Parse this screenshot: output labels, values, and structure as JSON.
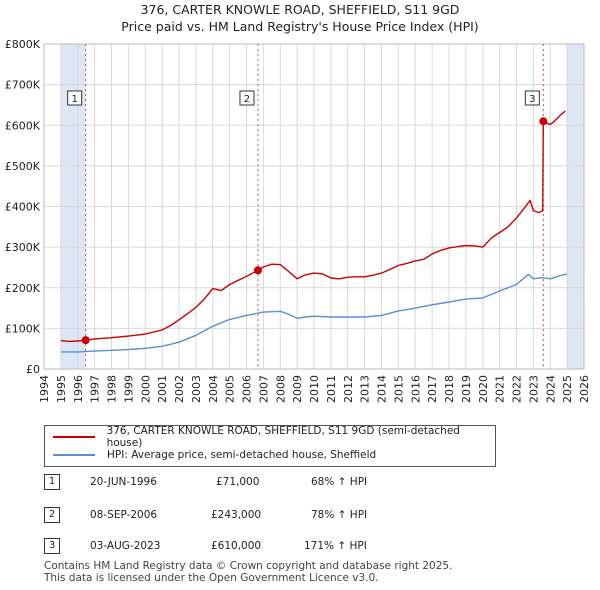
{
  "header": {
    "title_line1": "376, CARTER KNOWLE ROAD, SHEFFIELD, S11 9GD",
    "title_line2": "Price paid vs. HM Land Registry's House Price Index (HPI)"
  },
  "legend": {
    "property_label": "376, CARTER KNOWLE ROAD, SHEFFIELD, S11 9GD (semi-detached house)",
    "hpi_label": "HPI: Average price, semi-detached house, Sheffield"
  },
  "transactions": [
    {
      "num": "1",
      "date": "20-JUN-1996",
      "price": "£71,000",
      "hpi": "68% ↑ HPI"
    },
    {
      "num": "2",
      "date": "08-SEP-2006",
      "price": "£243,000",
      "hpi": "78% ↑ HPI"
    },
    {
      "num": "3",
      "date": "03-AUG-2023",
      "price": "£610,000",
      "hpi": "171% ↑ HPI"
    }
  ],
  "footer": {
    "line1": "Contains HM Land Registry data © Crown copyright and database right 2025.",
    "line2": "This data is licensed under the Open Government Licence v3.0."
  },
  "colors": {
    "property": "#cc0000",
    "hpi": "#5b8fd0",
    "band": "#dde6f5",
    "grid": "#d8d8d8"
  },
  "chart_data": {
    "type": "line",
    "xlim": [
      1994,
      2026
    ],
    "ylim": [
      0,
      800000
    ],
    "x_ticks": [
      "1994",
      "1995",
      "1996",
      "1997",
      "1998",
      "1999",
      "2000",
      "2001",
      "2002",
      "2003",
      "2004",
      "2005",
      "2006",
      "2007",
      "2008",
      "2009",
      "2010",
      "2011",
      "2012",
      "2013",
      "2014",
      "2015",
      "2016",
      "2017",
      "2018",
      "2019",
      "2020",
      "2021",
      "2022",
      "2023",
      "2024",
      "2025",
      "2026"
    ],
    "y_ticks": [
      {
        "value": 0,
        "label": "£0"
      },
      {
        "value": 100000,
        "label": "£100K"
      },
      {
        "value": 200000,
        "label": "£200K"
      },
      {
        "value": 300000,
        "label": "£300K"
      },
      {
        "value": 400000,
        "label": "£400K"
      },
      {
        "value": 500000,
        "label": "£500K"
      },
      {
        "value": 600000,
        "label": "£600K"
      },
      {
        "value": 700000,
        "label": "£700K"
      },
      {
        "value": 800000,
        "label": "£800K"
      }
    ],
    "shaded_ranges": [
      [
        1995,
        1996.47
      ],
      [
        2025.0,
        2026
      ]
    ],
    "series": [
      {
        "name": "376, CARTER KNOWLE ROAD, SHEFFIELD, S11 9GD (semi-detached house)",
        "x": [
          1995,
          1995.5,
          1996,
          1996.47,
          1997,
          1998,
          1999,
          2000,
          2001,
          2001.5,
          2002,
          2002.5,
          2003,
          2003.5,
          2004,
          2004.5,
          2005,
          2005.5,
          2006,
          2006.68,
          2007,
          2007.5,
          2008,
          2008.5,
          2009,
          2009.5,
          2010,
          2010.5,
          2011,
          2011.5,
          2012,
          2012.5,
          2013,
          2013.5,
          2014,
          2014.5,
          2015,
          2015.5,
          2016,
          2016.5,
          2017,
          2017.5,
          2018,
          2018.5,
          2019,
          2019.5,
          2020,
          2020.5,
          2021,
          2021.5,
          2022,
          2022.5,
          2022.8,
          2023.0,
          2023.3,
          2023.55,
          2023.59,
          2023.8,
          2024.0,
          2024.3,
          2024.6,
          2024.9
        ],
        "y": [
          70000,
          68000,
          69000,
          71000,
          74000,
          77000,
          81000,
          86000,
          96000,
          107000,
          121000,
          136000,
          152000,
          172000,
          198000,
          193000,
          208000,
          218000,
          228000,
          243000,
          251000,
          258000,
          257000,
          240000,
          222000,
          232000,
          236000,
          234000,
          224000,
          222000,
          226000,
          227000,
          227000,
          231000,
          236000,
          245000,
          255000,
          260000,
          266000,
          270000,
          283000,
          292000,
          298000,
          301000,
          304000,
          303000,
          300000,
          322000,
          336000,
          350000,
          372000,
          398000,
          415000,
          390000,
          385000,
          390000,
          610000,
          605000,
          602000,
          612000,
          625000,
          635000
        ]
      },
      {
        "name": "HPI: Average price, semi-detached house, Sheffield",
        "x": [
          1995,
          1996,
          1997,
          1998,
          1999,
          2000,
          2001,
          2002,
          2003,
          2004,
          2005,
          2006,
          2007,
          2008,
          2008.5,
          2009,
          2009.5,
          2010,
          2011,
          2012,
          2013,
          2014,
          2015,
          2016,
          2017,
          2018,
          2019,
          2020,
          2021,
          2022,
          2022.7,
          2023,
          2023.5,
          2024,
          2024.5,
          2025
        ],
        "y": [
          42000,
          42000,
          44000,
          46000,
          48000,
          51000,
          56000,
          66000,
          83000,
          105000,
          122000,
          132000,
          140000,
          142000,
          135000,
          125000,
          128000,
          130000,
          128000,
          128000,
          128000,
          132000,
          143000,
          150000,
          158000,
          165000,
          172000,
          175000,
          192000,
          208000,
          233000,
          222000,
          225000,
          222000,
          229000,
          234000
        ]
      }
    ],
    "markers": [
      {
        "label": "1",
        "x": 1996.47,
        "y": 71000
      },
      {
        "label": "2",
        "x": 2006.68,
        "y": 243000
      },
      {
        "label": "3",
        "x": 2023.59,
        "y": 610000
      }
    ]
  }
}
